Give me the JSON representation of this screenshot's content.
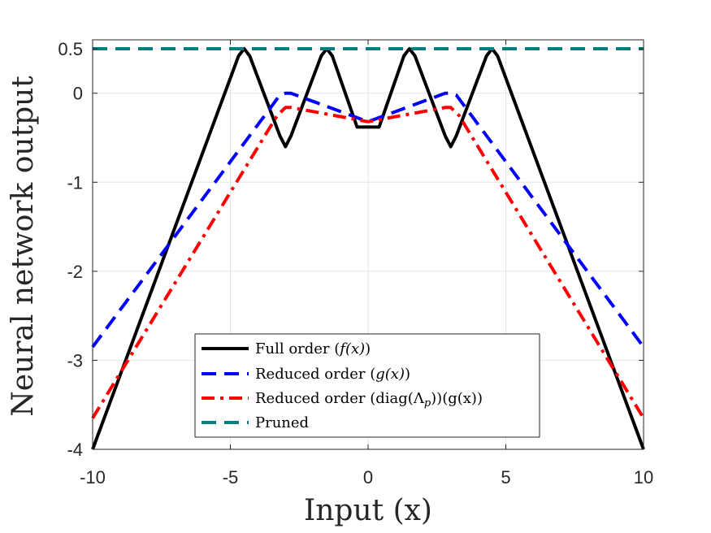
{
  "chart_data": {
    "type": "line",
    "xlabel": "Input (x)",
    "ylabel": "Neural network output",
    "xlim": [
      -10,
      10
    ],
    "ylim": [
      -4,
      0.5
    ],
    "x_ticks": [
      -10,
      -5,
      0,
      5,
      10
    ],
    "y_ticks": [
      -4,
      -3,
      -2,
      -1,
      0,
      0.5
    ],
    "x_tick_labels": [
      "-10",
      "-5",
      "0",
      "5",
      "10"
    ],
    "y_tick_labels": [
      "-4",
      "-3",
      "-2",
      "-1",
      "0",
      "0.5"
    ],
    "grid": true,
    "legend_placement": "bottom-center",
    "series": [
      {
        "name": "Full order (f(x))",
        "color": "#000000",
        "style": "solid",
        "x": [
          -10,
          -4.7,
          -4.5,
          -4.3,
          -3.2,
          -3.0,
          -2.8,
          -1.7,
          -1.5,
          -1.3,
          -0.4,
          0.4,
          1.3,
          1.5,
          1.7,
          2.8,
          3.0,
          3.2,
          4.3,
          4.5,
          4.7,
          10
        ],
        "y": [
          -4,
          0.42,
          0.5,
          0.42,
          -0.48,
          -0.6,
          -0.48,
          0.42,
          0.5,
          0.42,
          -0.38,
          -0.38,
          0.42,
          0.5,
          0.42,
          -0.48,
          -0.6,
          -0.48,
          0.42,
          0.5,
          0.42,
          -4
        ]
      },
      {
        "name": "Reduced order (g(x))",
        "color": "#0000ff",
        "style": "dashed",
        "x": [
          -10,
          -3.2,
          -3.0,
          -2.8,
          0,
          2.8,
          3.0,
          3.2,
          10
        ],
        "y": [
          -2.85,
          -0.02,
          0.0,
          0.0,
          -0.32,
          0.0,
          0.0,
          -0.02,
          -2.85
        ]
      },
      {
        "name": "Reduced order (diag(Λp))(g(x))",
        "color": "#ff0000",
        "style": "dash-dot",
        "x": [
          -10,
          -3.3,
          -3.0,
          -2.8,
          0,
          2.8,
          3.0,
          3.3,
          10
        ],
        "y": [
          -3.65,
          -0.25,
          -0.16,
          -0.16,
          -0.32,
          -0.16,
          -0.16,
          -0.25,
          -3.65
        ]
      },
      {
        "name": "Pruned",
        "color": "#008080",
        "style": "dashed",
        "x": [
          -10,
          10
        ],
        "y": [
          0.5,
          0.5
        ]
      }
    ]
  },
  "legend": {
    "entries": [
      {
        "prefix": "Full order (",
        "math": "f(x)",
        "sub": "",
        "suffix": ")"
      },
      {
        "prefix": "Reduced order (",
        "math": "g(x)",
        "sub": "",
        "suffix": ")"
      },
      {
        "prefix": "Reduced order (diag(Λ",
        "math": "",
        "sub": "p",
        "suffix": "))(g(x))"
      },
      {
        "prefix": "Pruned",
        "math": "",
        "sub": "",
        "suffix": ""
      }
    ]
  }
}
